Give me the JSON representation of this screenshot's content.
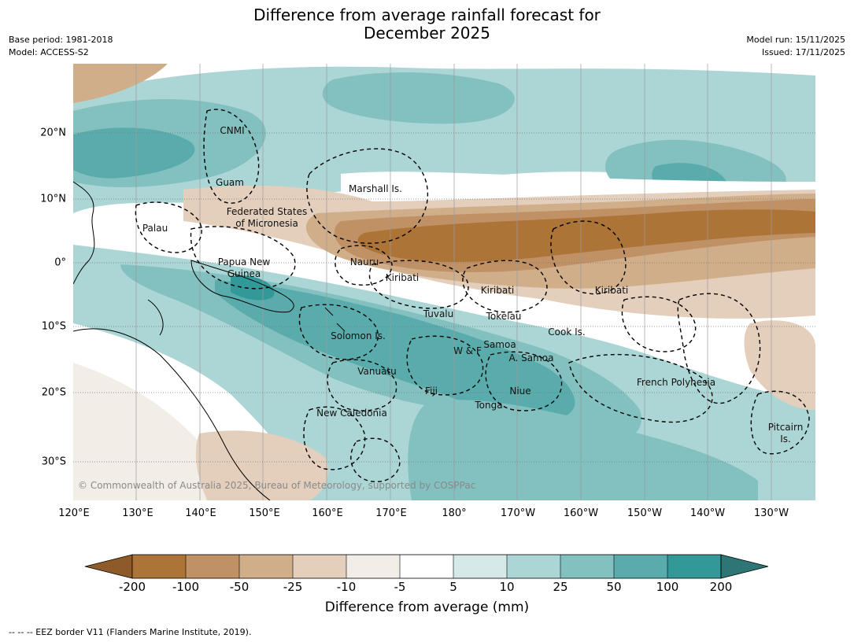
{
  "title_line1": "Difference from average rainfall forecast for",
  "title_line2": "December 2025",
  "meta_left": [
    "Base period: 1981-2018",
    "Model: ACCESS-S2"
  ],
  "meta_right": [
    "Model run: 15/11/2025",
    "Issued: 17/11/2025"
  ],
  "lat_ticks": [
    "20°N",
    "10°N",
    "0°",
    "10°S",
    "20°S",
    "30°S"
  ],
  "lon_ticks": [
    "120°E",
    "130°E",
    "140°E",
    "150°E",
    "160°E",
    "170°E",
    "180°",
    "170°W",
    "160°W",
    "150°W",
    "140°W",
    "130°W"
  ],
  "places": {
    "cnmi": "CNMI",
    "guam": "Guam",
    "marshall": "Marshall Is.",
    "fsm1": "Federated States",
    "fsm2": "of Micronesia",
    "palau": "Palau",
    "png1": "Papua New",
    "png2": "Guinea",
    "nauru": "Nauru",
    "kiribati_w": "Kiribati",
    "kiribati_c": "Kiribati",
    "kiribati_e": "Kiribati",
    "tuvalu": "Tuvalu",
    "tokelau": "Tokelau",
    "cook": "Cook Is.",
    "solomon": "Solomon Is.",
    "samoa": "Samoa",
    "wf": "W & F",
    "asamoa": "A. Samoa",
    "vanuatu": "Vanuatu",
    "fiji": "Fiji",
    "niue": "Niue",
    "tonga": "Tonga",
    "frenchpoly": "French Polynesia",
    "newcal": "New Caledonia",
    "pitcairn1": "Pitcairn",
    "pitcairn2": "Is."
  },
  "copyright": "© Commonwealth of Australia 2025, Bureau of Meteorology, supported by COSPPac",
  "legend": {
    "title": "Difference from average (mm)",
    "labels": [
      "-200",
      "-100",
      "-50",
      "-25",
      "-10",
      "-5",
      "5",
      "10",
      "25",
      "50",
      "100",
      "200"
    ],
    "colors": [
      "#8e5a2a",
      "#ad7438",
      "#c09165",
      "#d1ae8a",
      "#e3cfbc",
      "#f2ede6",
      "#ffffff",
      "#d5e9e8",
      "#acd6d5",
      "#83c0c0",
      "#5aacac",
      "#339898",
      "#2e7676"
    ]
  },
  "footer": "--  --  -- EEZ border V11 (Flanders Marine Institute, 2019)."
}
